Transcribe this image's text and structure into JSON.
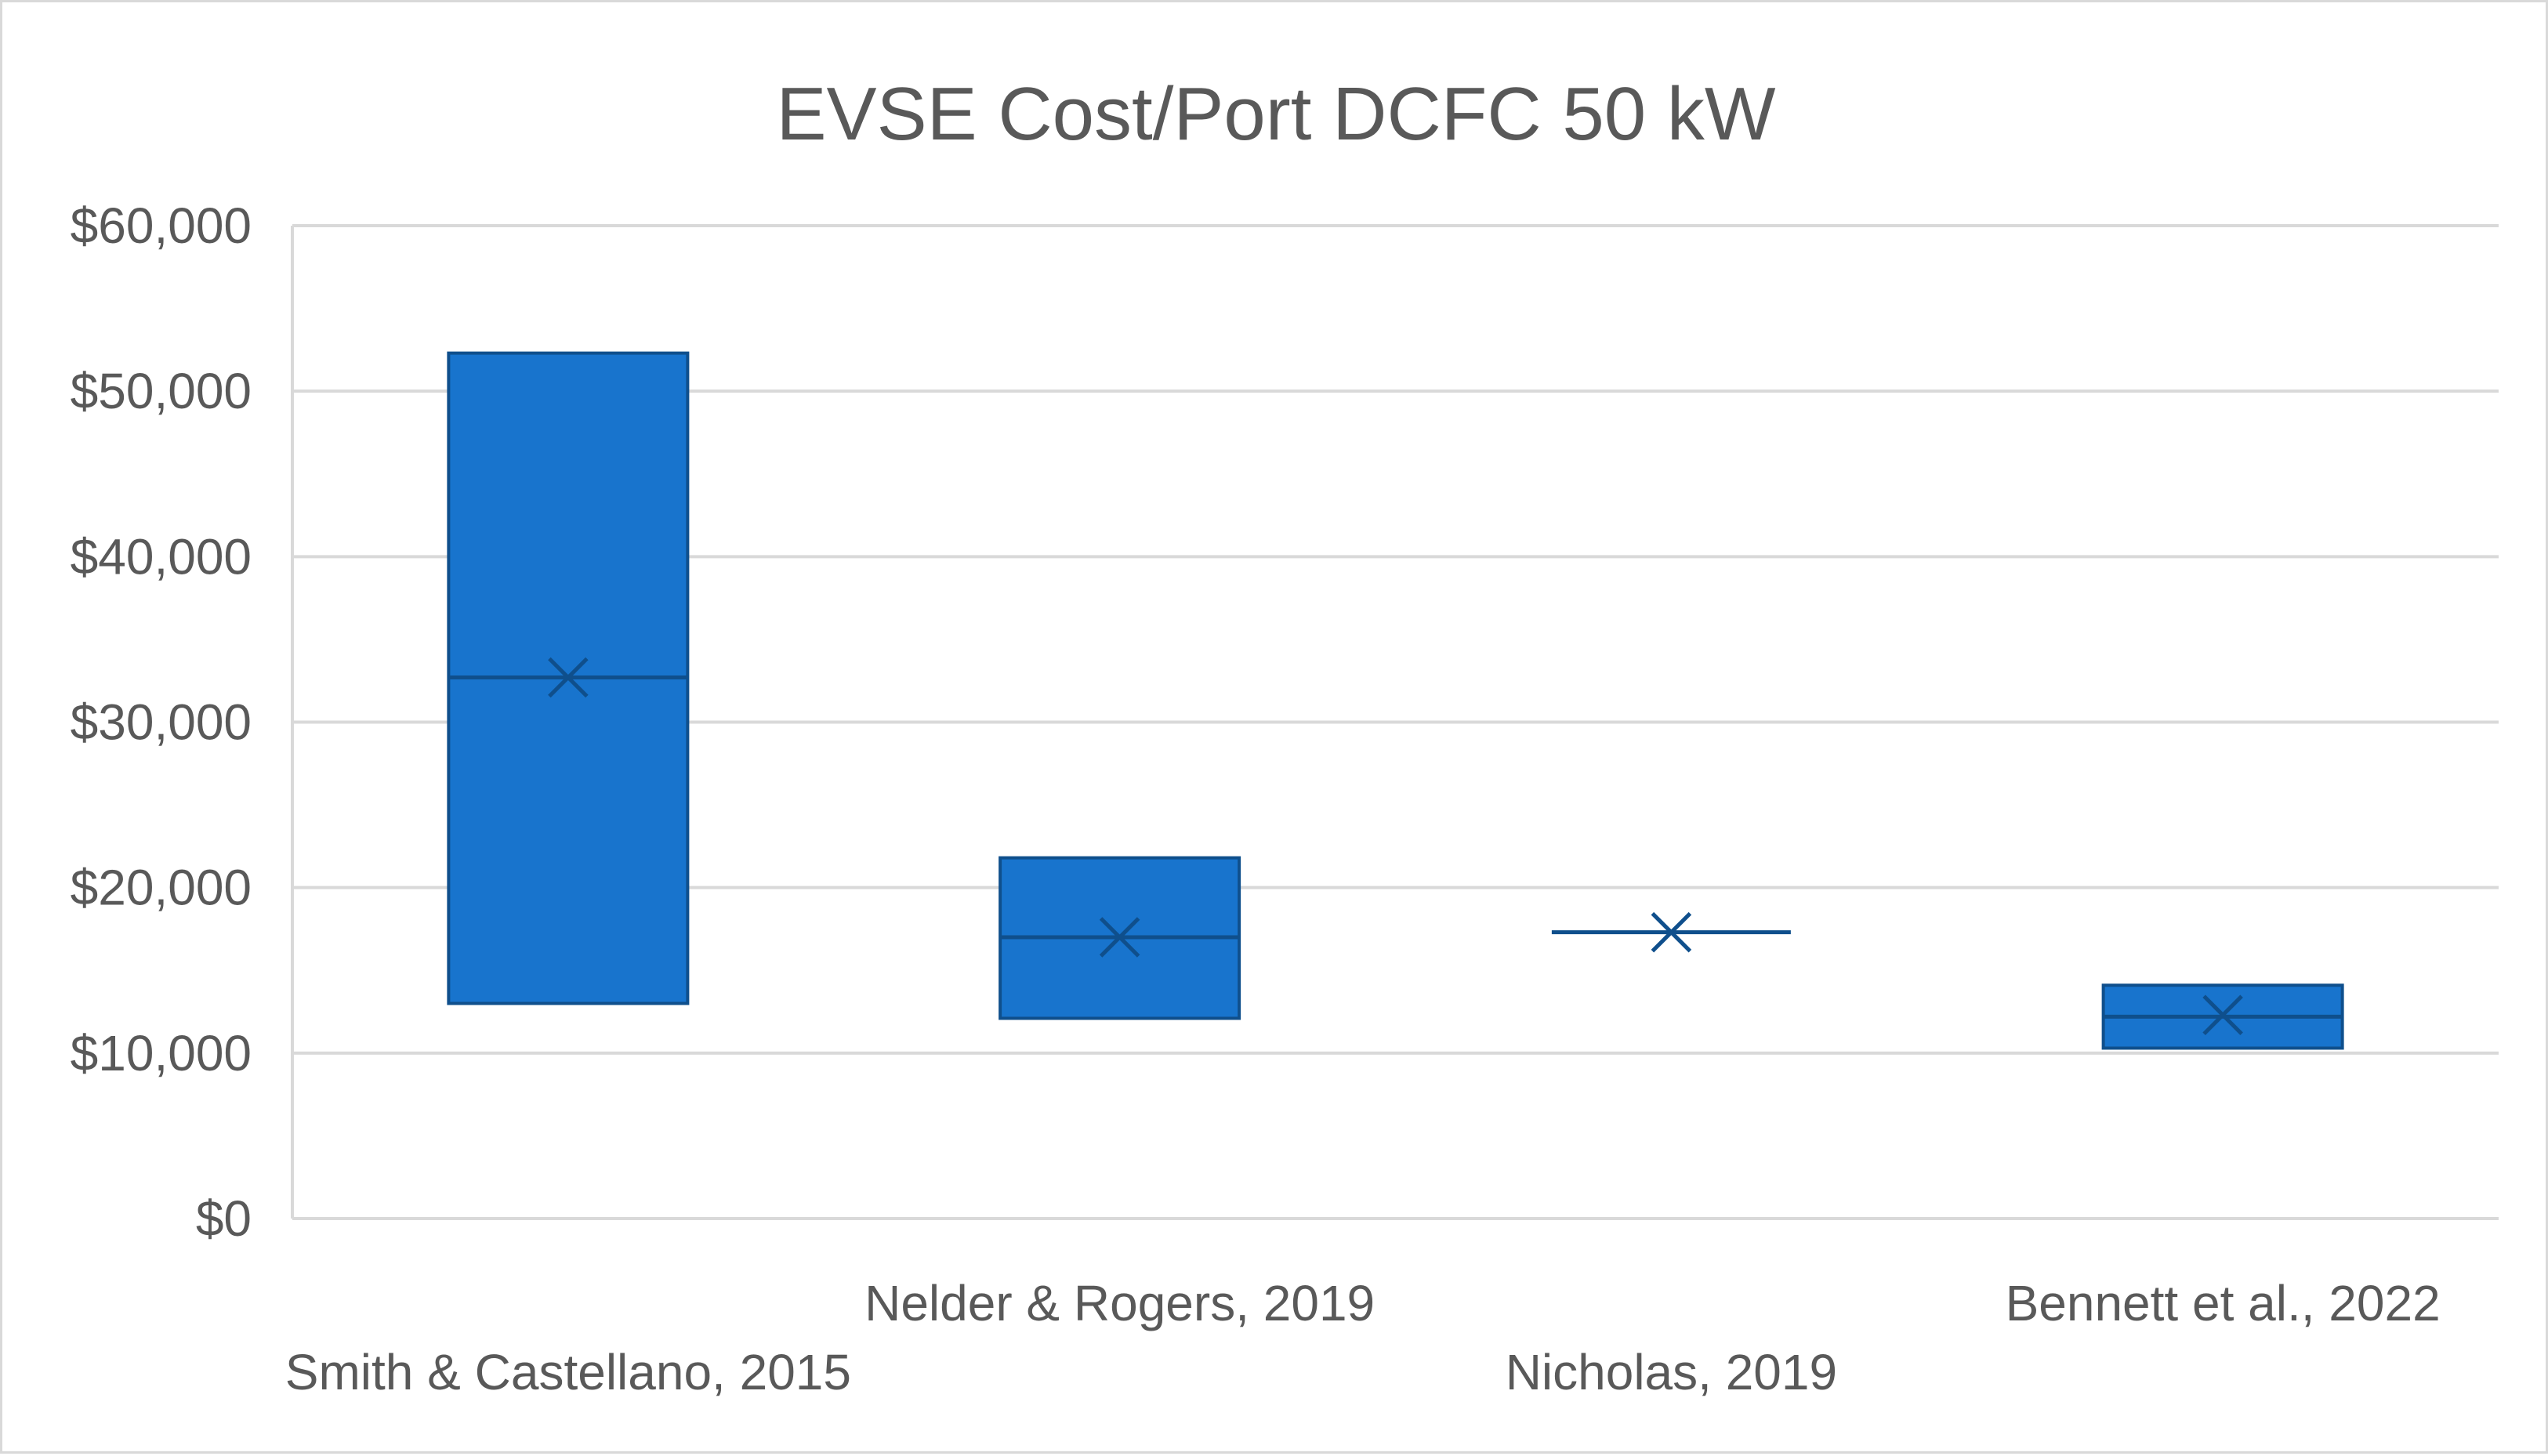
{
  "chart_data": {
    "type": "box",
    "title": "EVSE Cost/Port DCFC 50 kW",
    "xlabel": "",
    "ylabel": "",
    "ylim": [
      0,
      60000
    ],
    "y_ticks": [
      0,
      10000,
      20000,
      30000,
      40000,
      50000,
      60000
    ],
    "y_tick_labels": [
      "$0",
      "$10,000",
      "$20,000",
      "$30,000",
      "$40,000",
      "$50,000",
      "$60,000"
    ],
    "grid": true,
    "legend": "none",
    "categories": [
      "Smith & Castellano, 2015",
      "Nelder & Rogers, 2019",
      "Nicholas, 2019",
      "Bennett et al., 2022"
    ],
    "boxes": [
      {
        "name": "Smith & Castellano, 2015",
        "low": 13000,
        "high": 52300,
        "median": 32700,
        "mean": 32700
      },
      {
        "name": "Nelder & Rogers, 2019",
        "low": 12100,
        "high": 21800,
        "median": 17000,
        "mean": 17000
      },
      {
        "name": "Nicholas, 2019",
        "low": 17300,
        "high": 17300,
        "median": 17300,
        "mean": 17300
      },
      {
        "name": "Bennett et al., 2022",
        "low": 10300,
        "high": 14100,
        "median": 12200,
        "mean": 12300
      }
    ],
    "colors": {
      "fill": "#1874cd",
      "stroke": "#0f4f8c",
      "grid": "#d9d9d9",
      "text": "#595959",
      "axis": "#d9d9d9"
    }
  }
}
